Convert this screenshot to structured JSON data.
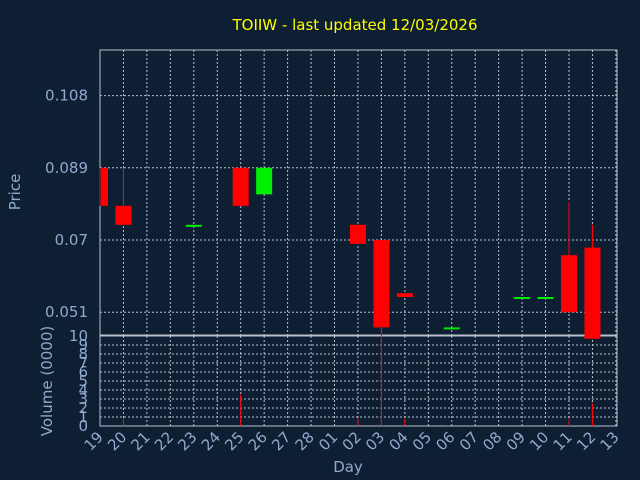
{
  "title": "TOIIW - last updated 12/03/2026",
  "colors": {
    "background": "#0f1f33",
    "title": "#ffff00",
    "axis_text": "#8faacc",
    "grid": "#b8c0cc",
    "up": "#00ee00",
    "down": "#ff0000",
    "volume": "#ff0000"
  },
  "chart_data": [
    {
      "type": "candlestick",
      "ylabel": "Price",
      "ylim": [
        0.045,
        0.12
      ],
      "yticks": [
        "0.108",
        "0.089",
        "0.07",
        "0.051"
      ],
      "ytick_values": [
        0.108,
        0.089,
        0.07,
        0.051
      ],
      "grid": true,
      "categories": [
        "19",
        "20",
        "21",
        "22",
        "23",
        "24",
        "25",
        "26",
        "27",
        "28",
        "01",
        "02",
        "03",
        "04",
        "05",
        "06",
        "07",
        "08",
        "09",
        "10",
        "11",
        "12",
        "13"
      ],
      "candles": [
        {
          "day": "19",
          "open": 0.089,
          "close": 0.079,
          "high": 0.089,
          "low": 0.079
        },
        {
          "day": "20",
          "open": 0.079,
          "close": 0.074,
          "high": 0.089,
          "low": 0.074
        },
        {
          "day": "23",
          "open": 0.074,
          "close": 0.074,
          "high": 0.074,
          "low": 0.074
        },
        {
          "day": "25",
          "open": 0.089,
          "close": 0.079,
          "high": 0.089,
          "low": 0.079
        },
        {
          "day": "26",
          "open": 0.082,
          "close": 0.089,
          "high": 0.089,
          "low": 0.082
        },
        {
          "day": "02",
          "open": 0.074,
          "close": 0.069,
          "high": 0.074,
          "low": 0.069
        },
        {
          "day": "03",
          "open": 0.07,
          "close": 0.047,
          "high": 0.07,
          "low": 0.044
        },
        {
          "day": "04",
          "open": 0.056,
          "close": 0.055,
          "high": 0.056,
          "low": 0.055
        },
        {
          "day": "06",
          "open": 0.047,
          "close": 0.047,
          "high": 0.047,
          "low": 0.047
        },
        {
          "day": "09",
          "open": 0.055,
          "close": 0.055,
          "high": 0.055,
          "low": 0.055
        },
        {
          "day": "10",
          "open": 0.055,
          "close": 0.055,
          "high": 0.055,
          "low": 0.055
        },
        {
          "day": "11",
          "open": 0.066,
          "close": 0.051,
          "high": 0.08,
          "low": 0.051
        },
        {
          "day": "12",
          "open": 0.068,
          "close": 0.044,
          "high": 0.074,
          "low": 0.044
        }
      ]
    },
    {
      "type": "bar",
      "xlabel": "Day",
      "ylabel": "Volume (0000)",
      "ylim": [
        0,
        10
      ],
      "yticks": [
        "10",
        "9",
        "8",
        "7",
        "6",
        "5",
        "4",
        "3",
        "2",
        "1",
        "0"
      ],
      "ytick_values": [
        10,
        9,
        8,
        7,
        6,
        5,
        4,
        3,
        2,
        1,
        0
      ],
      "categories": [
        "19",
        "20",
        "21",
        "22",
        "23",
        "24",
        "25",
        "26",
        "27",
        "28",
        "01",
        "02",
        "03",
        "04",
        "05",
        "06",
        "07",
        "08",
        "09",
        "10",
        "11",
        "12",
        "13"
      ],
      "values": [
        0,
        0.8,
        0,
        0,
        0,
        0,
        3.5,
        0,
        0,
        0,
        0,
        0.8,
        10,
        0.8,
        0,
        0,
        0,
        0,
        0,
        0,
        0.8,
        2.5,
        0
      ]
    }
  ]
}
